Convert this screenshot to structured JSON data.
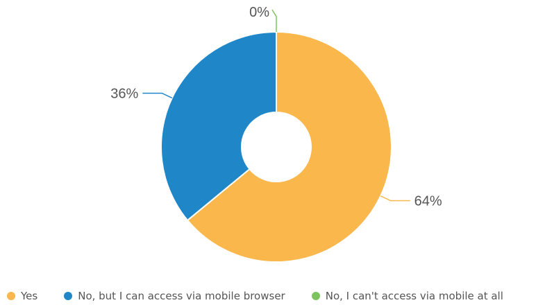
{
  "chart_data": {
    "type": "pie",
    "donut": true,
    "slices": [
      {
        "label": "Yes",
        "value": 64,
        "display": "64%",
        "color": "#F9B74C"
      },
      {
        "label": "No, but I can access via mobile browser",
        "value": 36,
        "display": "36%",
        "color": "#1F86C8"
      },
      {
        "label": "No, I can't access via mobile at all",
        "value": 0,
        "display": "0%",
        "color": "#7DC460"
      }
    ],
    "legend_position": "bottom"
  }
}
